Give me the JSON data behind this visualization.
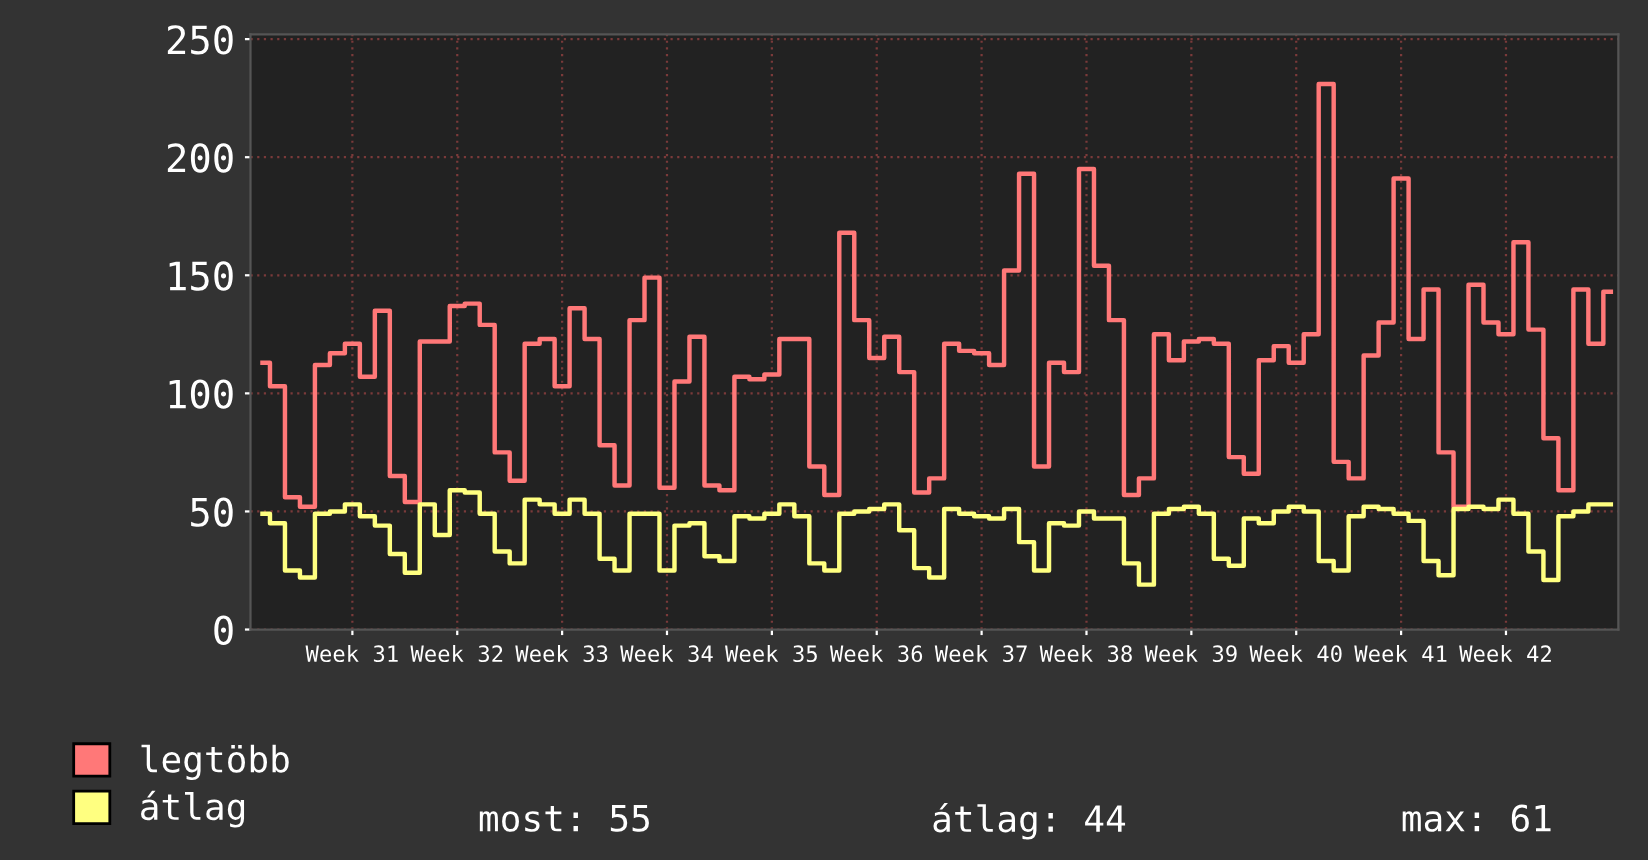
{
  "chart_data": {
    "type": "step",
    "categories": [
      null,
      null,
      null,
      null,
      null,
      null,
      "Week 31",
      null,
      null,
      null,
      null,
      null,
      null,
      "Week 32",
      null,
      null,
      null,
      null,
      null,
      null,
      "Week 33",
      null,
      null,
      null,
      null,
      null,
      null,
      "Week 34",
      null,
      null,
      null,
      null,
      null,
      null,
      "Week 35",
      null,
      null,
      null,
      null,
      null,
      null,
      "Week 36",
      null,
      null,
      null,
      null,
      null,
      null,
      "Week 37",
      null,
      null,
      null,
      null,
      null,
      null,
      "Week 38",
      null,
      null,
      null,
      null,
      null,
      null,
      "Week 39",
      null,
      null,
      null,
      null,
      null,
      null,
      "Week 40",
      null,
      null,
      null,
      null,
      null,
      null,
      "Week 41",
      null,
      null,
      null,
      null,
      null,
      null,
      "Week 42",
      null,
      null,
      null,
      null,
      null,
      null,
      null
    ],
    "series": [
      {
        "name": "legtöbb",
        "color": "#ff7878",
        "values": [
          113,
          103,
          56,
          52,
          112,
          117,
          121,
          107,
          135,
          65,
          54,
          122,
          122,
          137,
          138,
          129,
          75,
          63,
          121,
          123,
          103,
          136,
          123,
          78,
          61,
          131,
          149,
          60,
          105,
          124,
          61,
          59,
          107,
          106,
          108,
          123,
          123,
          69,
          57,
          168,
          131,
          115,
          124,
          109,
          58,
          64,
          121,
          118,
          117,
          112,
          152,
          193,
          69,
          113,
          109,
          195,
          154,
          131,
          57,
          64,
          125,
          114,
          122,
          123,
          121,
          73,
          66,
          114,
          120,
          113,
          125,
          231,
          71,
          64,
          116,
          130,
          191,
          123,
          144,
          75,
          52,
          146,
          130,
          125,
          164,
          127,
          81,
          59,
          144,
          121,
          143
        ]
      },
      {
        "name": "átlag",
        "color": "#ffff80",
        "values": [
          49,
          45,
          25,
          22,
          49,
          50,
          53,
          48,
          44,
          32,
          24,
          53,
          40,
          59,
          58,
          49,
          33,
          28,
          55,
          53,
          49,
          55,
          49,
          30,
          25,
          49,
          49,
          25,
          44,
          45,
          31,
          29,
          48,
          47,
          49,
          53,
          48,
          28,
          25,
          49,
          50,
          51,
          53,
          42,
          26,
          22,
          51,
          49,
          48,
          47,
          51,
          37,
          25,
          45,
          44,
          50,
          47,
          47,
          28,
          19,
          49,
          51,
          52,
          49,
          30,
          27,
          47,
          45,
          50,
          52,
          50,
          29,
          25,
          48,
          52,
          51,
          49,
          46,
          29,
          23,
          51,
          52,
          51,
          55,
          49,
          33,
          21,
          48,
          50,
          53,
          53
        ]
      }
    ],
    "ylim": [
      0,
      252
    ],
    "yticks": [
      0,
      50,
      100,
      150,
      200,
      250
    ],
    "grid": true,
    "legend": "bottom",
    "annotations": [
      "most: 55",
      "átlag: 44",
      "max: 61"
    ]
  }
}
